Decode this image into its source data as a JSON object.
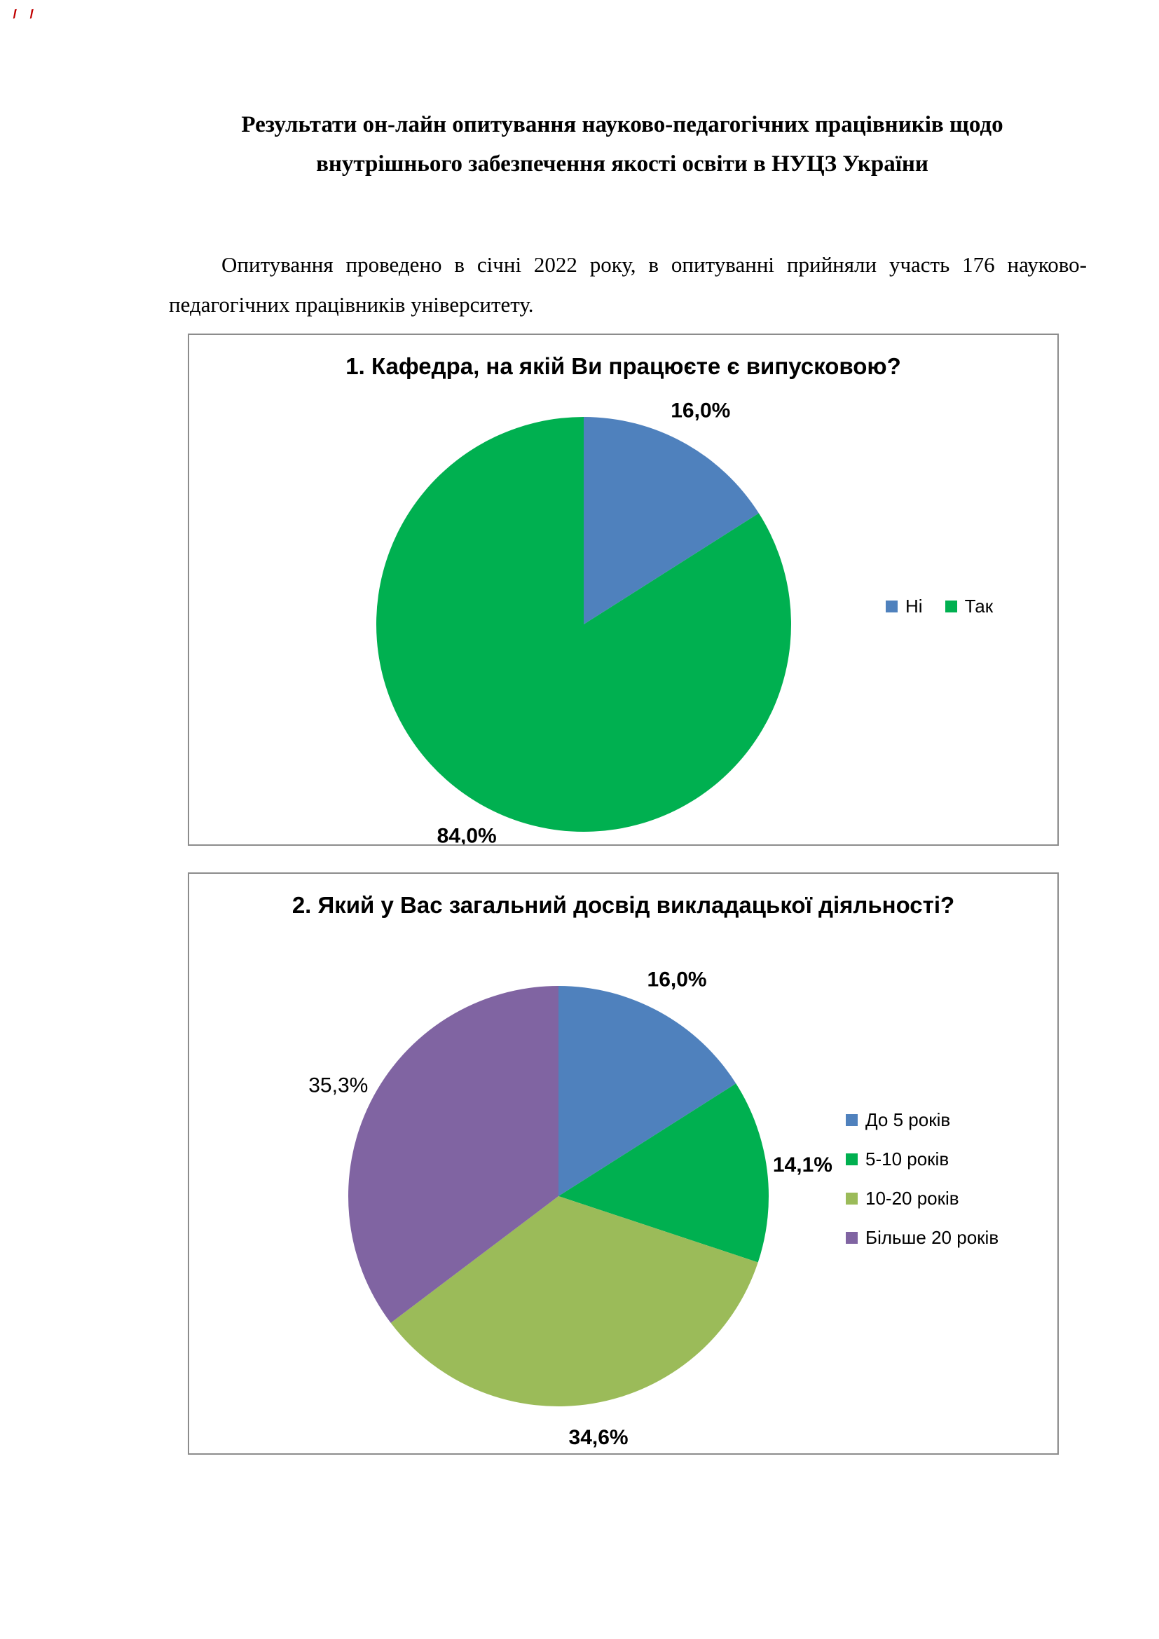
{
  "page": {
    "title": "Результати он-лайн опитування науково-педагогічних працівників щодо внутрішнього забезпечення якості освіти в НУЦЗ України",
    "intro": "Опитування проведено в січні 2022 року, в опитуванні прийняли участь 176 науково-педагогічних працівників університету."
  },
  "chart_data": [
    {
      "type": "pie",
      "title": "1. Кафедра, на якій Ви працюєте є випусковою?",
      "start_angle": "top-clockwise",
      "legend_position": "right-middle",
      "legend_layout": "horizontal",
      "slices": [
        {
          "label": "Ні",
          "value": 16.0,
          "display": "16,0%",
          "color": "#4F81BD",
          "bold": true
        },
        {
          "label": "Так",
          "value": 84.0,
          "display": "84,0%",
          "color": "#00B050",
          "bold": true
        }
      ]
    },
    {
      "type": "pie",
      "title": "2. Який у Вас загальний досвід викладацької діяльності?",
      "start_angle": "top-clockwise",
      "legend_position": "right-middle",
      "legend_layout": "vertical",
      "slices": [
        {
          "label": "До 5 років",
          "value": 16.0,
          "display": "16,0%",
          "color": "#4F81BD",
          "bold": true
        },
        {
          "label": "5-10 років",
          "value": 14.1,
          "display": "14,1%",
          "color": "#00B050",
          "bold": true
        },
        {
          "label": "10-20 років",
          "value": 34.6,
          "display": "34,6%",
          "color": "#9BBB59",
          "bold": true
        },
        {
          "label": "Більше 20 років",
          "value": 35.3,
          "display": "35,3%",
          "color": "#8064A2",
          "bold": false
        }
      ]
    }
  ]
}
